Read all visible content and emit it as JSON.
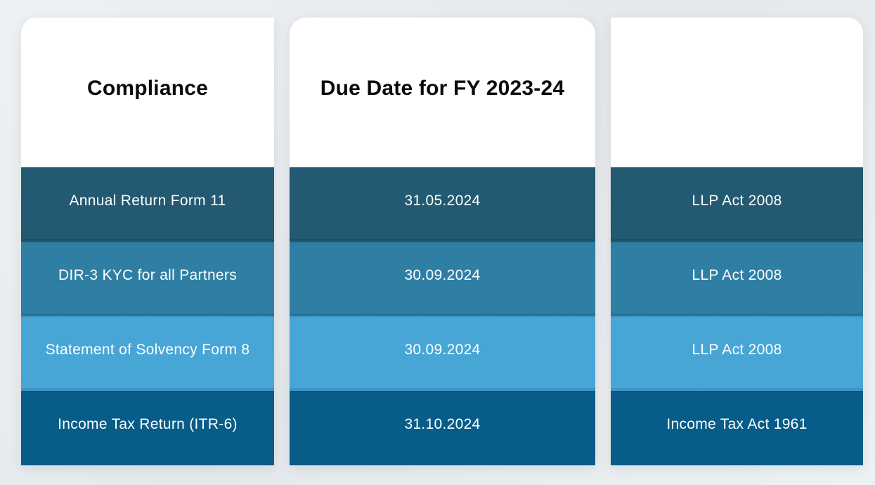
{
  "colors": {
    "header_background": "#ffffff",
    "row_1": "#235a71",
    "row_2": "#2e7fa3",
    "row_3": "#47a6d6",
    "row_4": "#075c88"
  },
  "columns": [
    {
      "header": "Compliance",
      "cells": [
        "Annual Return Form 11",
        "DIR-3 KYC for all Partners",
        "Statement of Solvency Form 8",
        "Income Tax Return (ITR-6)"
      ]
    },
    {
      "header": "Due Date for FY 2023-24",
      "cells": [
        "31.05.2024",
        "30.09.2024",
        "30.09.2024",
        "31.10.2024"
      ]
    },
    {
      "header": "",
      "cells": [
        "LLP Act 2008",
        "LLP Act 2008",
        "LLP Act 2008",
        "Income Tax Act 1961"
      ]
    }
  ]
}
